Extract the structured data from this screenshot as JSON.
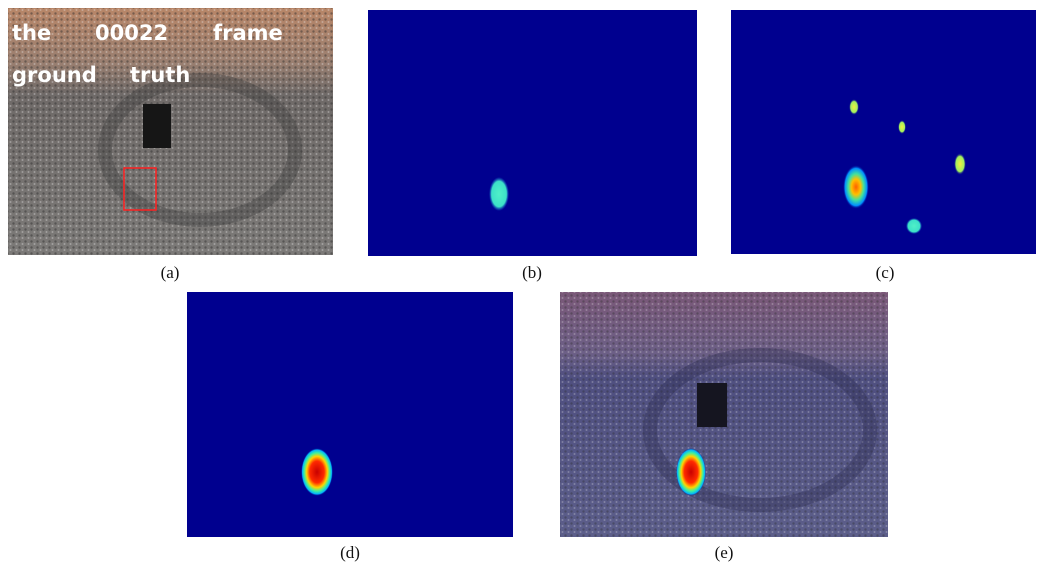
{
  "figure": {
    "overlay_text": {
      "line1": [
        "the",
        "00022",
        "frame"
      ],
      "line2": [
        "ground",
        "truth"
      ]
    },
    "captions": [
      "(a)",
      "(b)",
      "(c)",
      "(d)",
      "(e)"
    ]
  }
}
